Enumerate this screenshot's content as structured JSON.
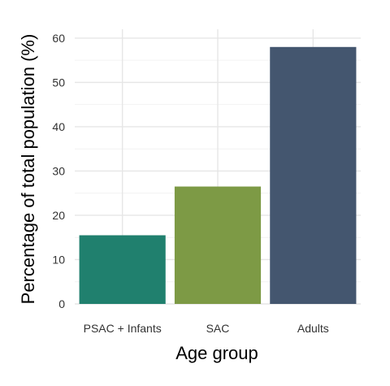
{
  "chart_data": {
    "type": "bar",
    "categories": [
      "PSAC + Infants",
      "SAC",
      "Adults"
    ],
    "values": [
      15.5,
      26.5,
      58
    ],
    "colors": [
      "#20806e",
      "#7d9a45",
      "#44566f"
    ],
    "title": "",
    "xlabel": "Age group",
    "ylabel": "Percentage of total population (%)",
    "ylim": [
      0,
      62
    ],
    "yticks": [
      0,
      10,
      20,
      30,
      40,
      50,
      60
    ],
    "grid": true,
    "legend": "none"
  }
}
